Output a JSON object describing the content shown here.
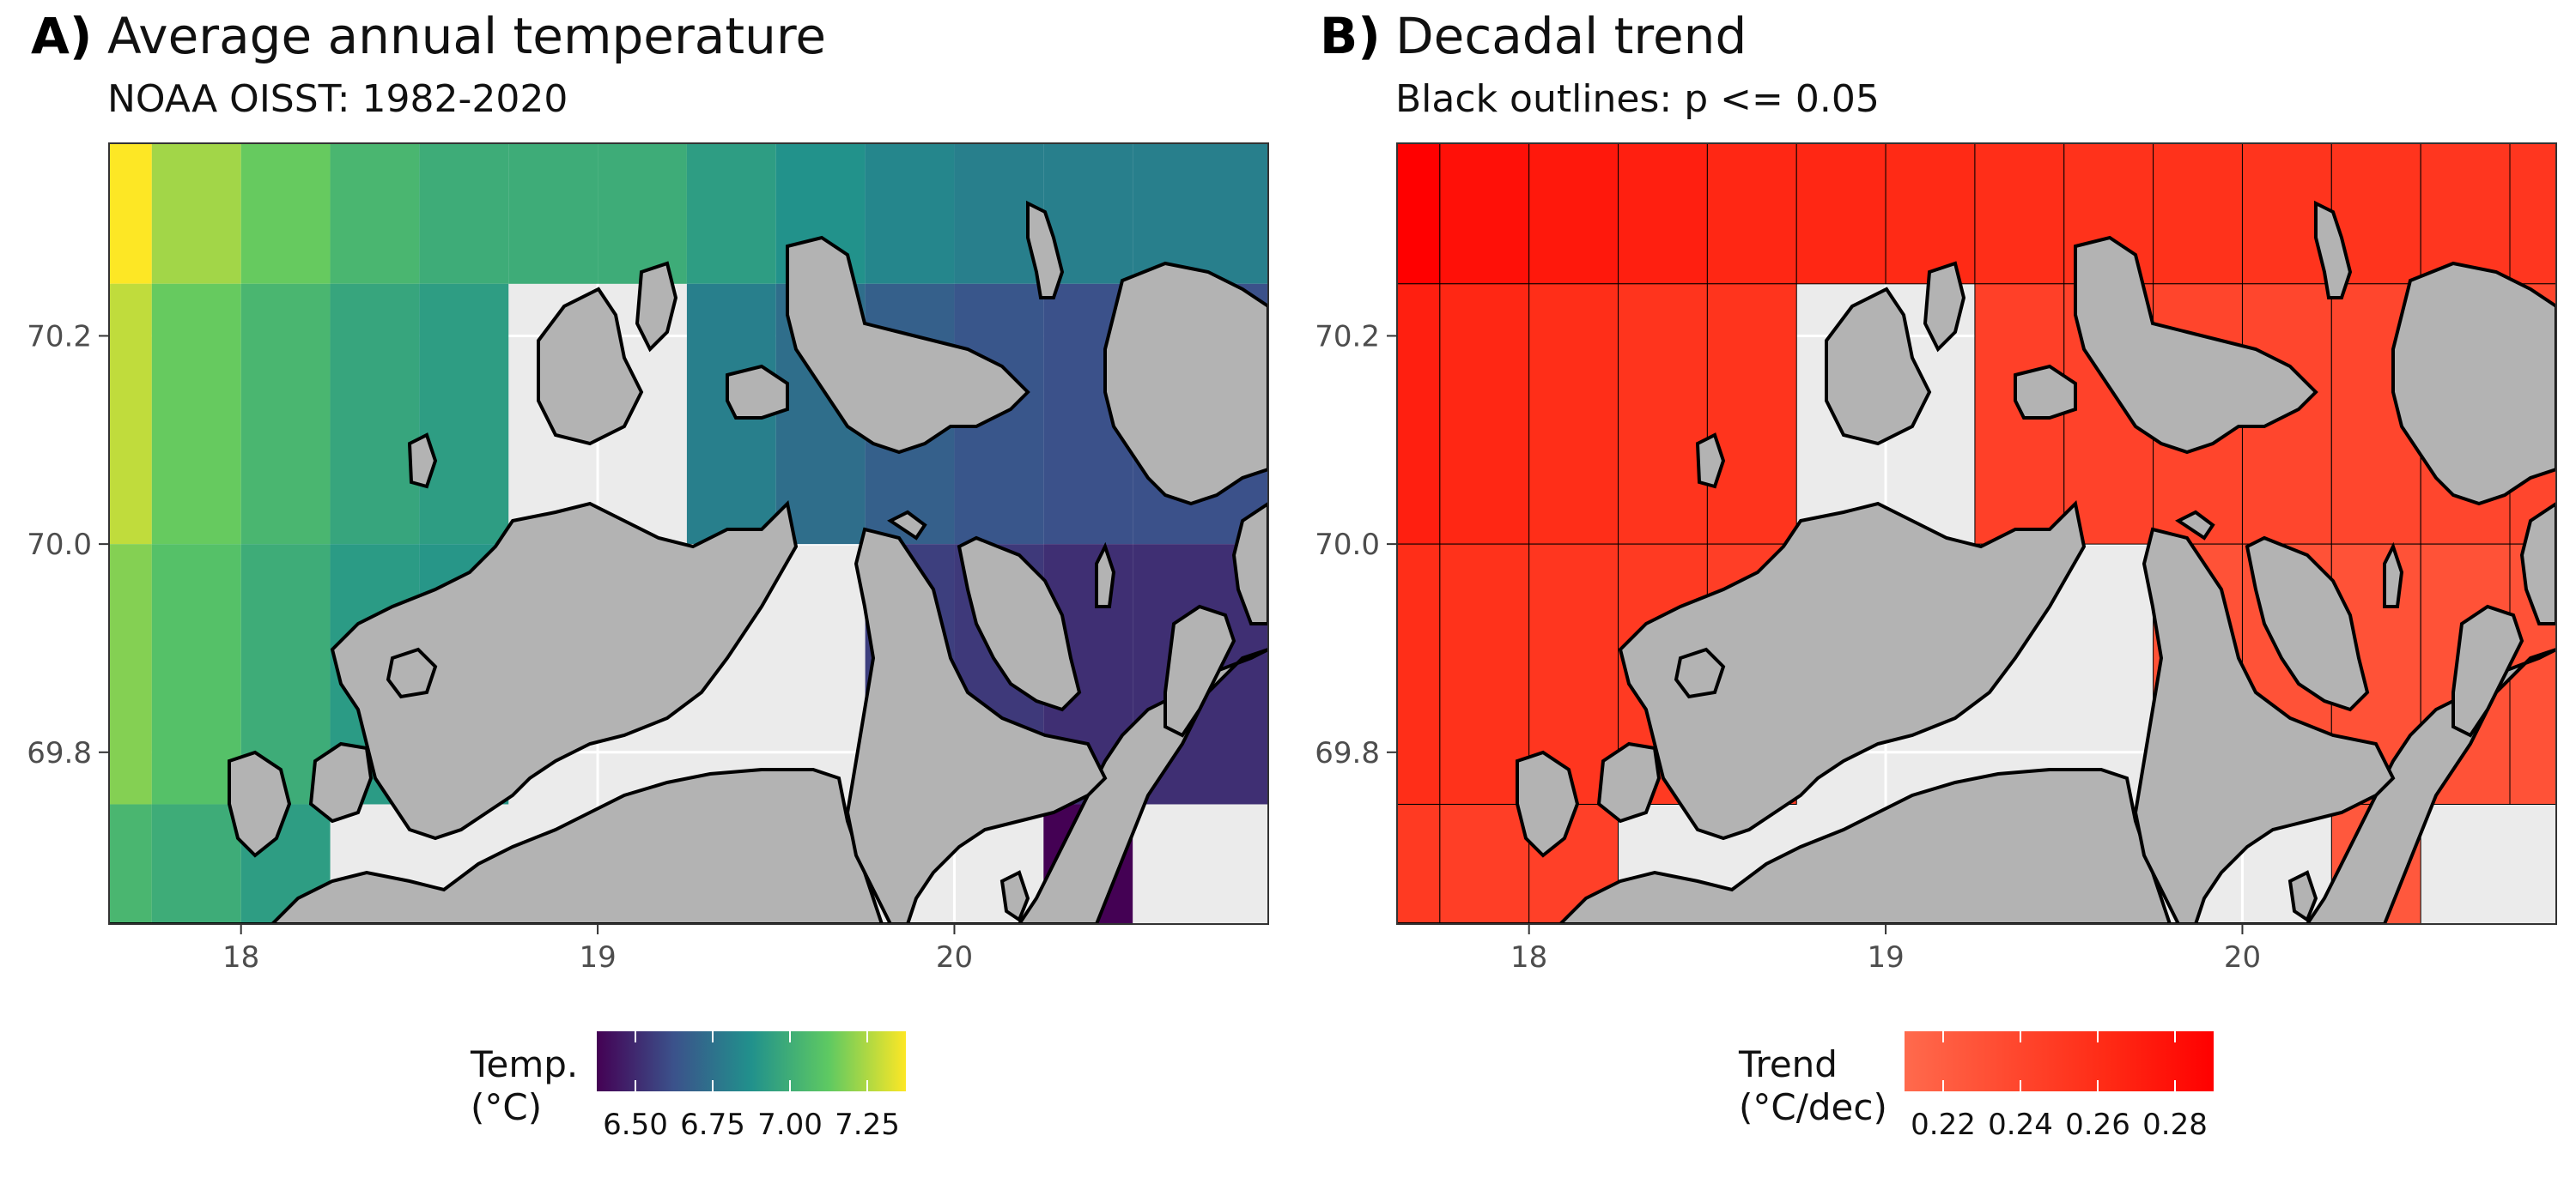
{
  "panels": [
    {
      "tag": "A)",
      "title": "Average annual temperature",
      "subtitle": "NOAA OISST: 1982-2020",
      "legend": {
        "title_line1": "Temp.",
        "title_line2": "(°C)",
        "ticks": [
          "6.50",
          "6.75",
          "7.00",
          "7.25"
        ],
        "colors": [
          "#440154",
          "#3b528b",
          "#21918c",
          "#5ec962",
          "#fde725"
        ]
      }
    },
    {
      "tag": "B)",
      "title": "Decadal trend",
      "subtitle": "Black outlines: p <= 0.05",
      "legend": {
        "title_line1": "Trend",
        "title_line2": "(°C/dec)",
        "ticks": [
          "0.22",
          "0.24",
          "0.26",
          "0.28"
        ],
        "colors": [
          "#ff6a4d",
          "#ff4a30",
          "#ff2a15",
          "#ff0000"
        ]
      }
    }
  ],
  "axes": {
    "x_ticks": [
      "18",
      "19",
      "20"
    ],
    "y_ticks": [
      "70.2",
      "70.0",
      "69.8"
    ],
    "xlim": [
      17.63,
      20.88
    ],
    "ylim": [
      69.635,
      70.385
    ]
  },
  "map_data": {
    "lon_centers": [
      17.625,
      17.875,
      18.125,
      18.375,
      18.625,
      18.875,
      19.125,
      19.375,
      19.625,
      19.875,
      20.125,
      20.375,
      20.625,
      20.875
    ],
    "lat_centers": [
      70.375,
      70.125,
      69.875,
      69.625
    ],
    "temperature": [
      [
        7.45,
        7.3,
        7.2,
        7.1,
        7.05,
        7.05,
        7.05,
        6.98,
        6.93,
        6.88,
        6.85,
        6.85,
        6.85,
        6.85
      ],
      [
        7.35,
        7.2,
        7.1,
        7.02,
        6.98,
        null,
        null,
        6.85,
        6.78,
        6.72,
        6.68,
        6.66,
        6.66,
        6.66
      ],
      [
        7.25,
        7.15,
        7.05,
        6.97,
        6.95,
        null,
        null,
        null,
        null,
        6.6,
        6.58,
        6.55,
        6.55,
        6.55
      ],
      [
        7.1,
        7.05,
        6.98,
        null,
        null,
        null,
        null,
        null,
        null,
        null,
        null,
        6.4,
        null,
        null
      ]
    ],
    "trend": [
      [
        0.295,
        0.285,
        0.28,
        0.275,
        0.27,
        0.27,
        0.268,
        0.265,
        0.262,
        0.262,
        0.26,
        0.26,
        0.258,
        0.258
      ],
      [
        0.275,
        0.27,
        0.265,
        0.26,
        0.26,
        null,
        null,
        0.25,
        0.248,
        0.246,
        0.245,
        0.245,
        0.245,
        0.245
      ],
      [
        0.265,
        0.262,
        0.258,
        0.255,
        0.252,
        null,
        null,
        null,
        null,
        0.235,
        0.235,
        0.235,
        0.235,
        0.235
      ],
      [
        0.255,
        0.252,
        0.25,
        null,
        null,
        null,
        null,
        null,
        null,
        null,
        null,
        0.23,
        null,
        null
      ]
    ],
    "temp_range": [
      6.4,
      7.45
    ],
    "trend_range": [
      0.215,
      0.295
    ],
    "land_color": "#b3b3b3",
    "ocean_color": "#ebebeb",
    "grid_color": "#ffffff",
    "coast_color": "#000000"
  }
}
